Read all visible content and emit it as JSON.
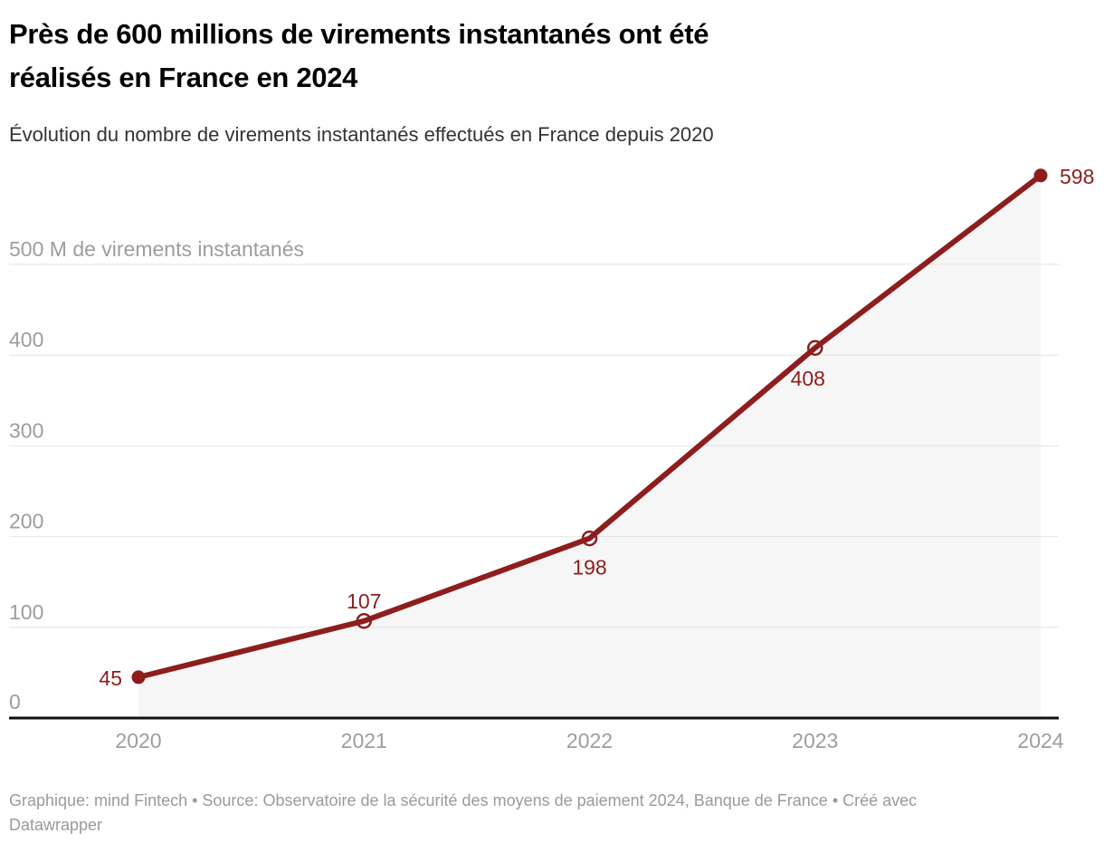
{
  "header": {
    "title_lines": [
      "Près de 600 millions de virements instantanés ont été",
      "réalisés en France en 2024"
    ]
  },
  "chart_data": {
    "type": "line",
    "title": "Près de 600 millions de virements instantanés ont été réalisés en France en 2024",
    "subtitle": "Évolution du nombre de virements instantanés effectués en France depuis 2020",
    "x": [
      "2020",
      "2021",
      "2022",
      "2023",
      "2024"
    ],
    "values": [
      45,
      107,
      198,
      408,
      598
    ],
    "data_labels": [
      "45",
      "107",
      "198",
      "408",
      "598"
    ],
    "point_style": [
      "filled",
      "open",
      "open",
      "open",
      "filled"
    ],
    "y_ticks": [
      0,
      100,
      200,
      300,
      400,
      500
    ],
    "y_axis_top_label": "500 M de virements instantanés",
    "ylim": [
      0,
      610
    ],
    "xlabel": "",
    "ylabel": "M de virements instantanés",
    "grid": true,
    "legend_position": "none",
    "line_color": "#8e1d1d",
    "area_fill": "#f6f6f6",
    "grid_color": "#e4e4e4",
    "axis_color": "#101010",
    "tick_label_color": "#9d9d9d"
  },
  "footer": {
    "line1": "Graphique: mind Fintech • Source: Observatoire de la sécurité des moyens de paiement 2024, Banque de France • Créé avec",
    "line2": "Datawrapper"
  }
}
